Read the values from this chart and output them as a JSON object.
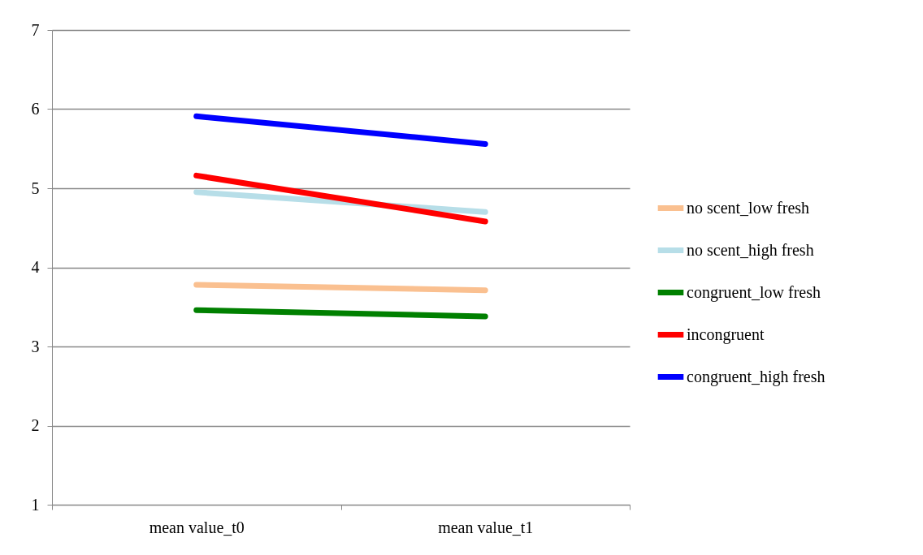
{
  "chart_data": {
    "type": "line",
    "categories": [
      "mean value_t0",
      "mean value_t1"
    ],
    "ylim": [
      1,
      7
    ],
    "yticks": [
      1,
      2,
      3,
      4,
      5,
      6,
      7
    ],
    "grid": "y",
    "legend": "right",
    "marker": "none",
    "series": [
      {
        "name": "no scent_low fresh",
        "color": "#fac090",
        "values": [
          3.78,
          3.71
        ]
      },
      {
        "name": "no scent_high fresh",
        "color": "#b7dee8",
        "values": [
          4.95,
          4.7
        ]
      },
      {
        "name": "congruent_low fresh",
        "color": "#008000",
        "values": [
          3.46,
          3.38
        ]
      },
      {
        "name": "incongruent",
        "color": "#ff0000",
        "values": [
          5.16,
          4.58
        ]
      },
      {
        "name": "congruent_high fresh",
        "color": "#0000ff",
        "values": [
          5.91,
          5.56
        ]
      }
    ]
  }
}
